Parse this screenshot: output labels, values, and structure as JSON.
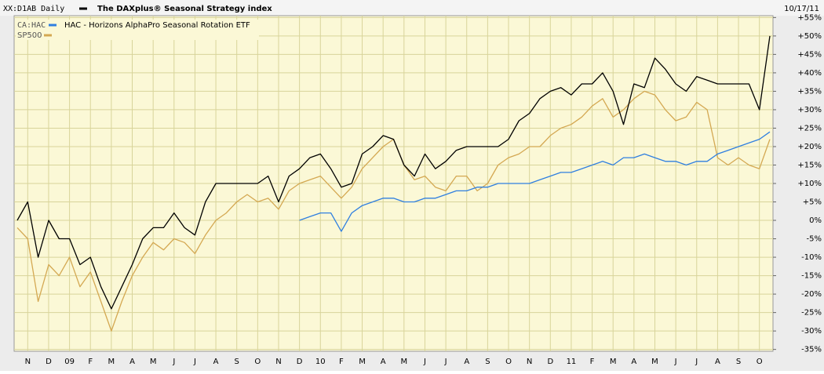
{
  "chart_data": {
    "type": "line",
    "symbol": "XX:D1AB Daily",
    "title": "The DAXplus® Seasonal Strategy index",
    "date": "10/17/11",
    "categories": [
      null,
      "N",
      null,
      "D",
      null,
      "09",
      null,
      "F",
      null,
      "M",
      null,
      "A",
      null,
      "M",
      null,
      "J",
      null,
      "J",
      null,
      "A",
      null,
      "S",
      null,
      "O",
      null,
      "N",
      null,
      "D",
      null,
      "10",
      null,
      "F",
      null,
      "M",
      null,
      "A",
      null,
      "M",
      null,
      "J",
      null,
      "J",
      null,
      "A",
      null,
      "S",
      null,
      "O",
      null,
      "N",
      null,
      "D",
      null,
      "11",
      null,
      "F",
      null,
      "M",
      null,
      "A",
      null,
      "M",
      null,
      "J",
      null,
      "J",
      null,
      "A",
      null,
      "S",
      null,
      "O",
      null
    ],
    "series": [
      {
        "name": "The DAXplus® Seasonal Strategy index",
        "legend_symbol": "XX:D1AB Daily",
        "color": "#000000",
        "values": [
          0,
          5,
          -10,
          0,
          -5,
          -5,
          -12,
          -10,
          -18,
          -24,
          -18,
          -12,
          -5,
          -2,
          -2,
          2,
          -2,
          -4,
          5,
          10,
          10,
          10,
          10,
          10,
          12,
          5,
          12,
          14,
          17,
          18,
          14,
          9,
          10,
          18,
          20,
          23,
          22,
          15,
          12,
          18,
          14,
          16,
          19,
          20,
          20,
          20,
          20,
          22,
          27,
          29,
          33,
          35,
          36,
          34,
          37,
          37,
          40,
          35,
          26,
          37,
          36,
          44,
          41,
          37,
          35,
          39,
          38,
          37,
          37,
          37,
          37,
          30,
          50
        ]
      },
      {
        "name": "HAC - Horizons AlphaPro Seasonal Rotation ETF",
        "legend_symbol": "CA:HAC",
        "color": "#2f7fe0",
        "values": [
          null,
          null,
          null,
          null,
          null,
          null,
          null,
          null,
          null,
          null,
          null,
          null,
          null,
          null,
          null,
          null,
          null,
          null,
          null,
          null,
          null,
          null,
          null,
          null,
          null,
          null,
          null,
          0,
          1,
          2,
          2,
          -3,
          2,
          4,
          5,
          6,
          6,
          5,
          5,
          6,
          6,
          7,
          8,
          8,
          9,
          9,
          10,
          10,
          10,
          10,
          11,
          12,
          13,
          13,
          14,
          15,
          16,
          15,
          17,
          17,
          18,
          17,
          16,
          16,
          15,
          16,
          16,
          18,
          19,
          20,
          21,
          22,
          24
        ]
      },
      {
        "name": "SP500",
        "color": "#d4a852",
        "values": [
          -2,
          -5,
          -22,
          -12,
          -15,
          -10,
          -18,
          -14,
          -22,
          -30,
          -22,
          -15,
          -10,
          -6,
          -8,
          -5,
          -6,
          -9,
          -4,
          0,
          2,
          5,
          7,
          5,
          6,
          3,
          8,
          10,
          11,
          12,
          9,
          6,
          9,
          14,
          17,
          20,
          22,
          15,
          11,
          12,
          9,
          8,
          12,
          12,
          8,
          10,
          15,
          17,
          18,
          20,
          20,
          23,
          25,
          26,
          28,
          31,
          33,
          28,
          30,
          33,
          35,
          34,
          30,
          27,
          28,
          32,
          30,
          17,
          15,
          17,
          15,
          14,
          22
        ]
      }
    ],
    "ylim": [
      -35.5,
      55.5
    ],
    "yticks": [
      {
        "value": -35,
        "label": "-35%"
      },
      {
        "value": -30,
        "label": "-30%"
      },
      {
        "value": -25,
        "label": "-25%"
      },
      {
        "value": -20,
        "label": "-20%"
      },
      {
        "value": -15,
        "label": "-15%"
      },
      {
        "value": -10,
        "label": "-10%"
      },
      {
        "value": -5,
        "label": "-5%"
      },
      {
        "value": 0,
        "label": "0%"
      },
      {
        "value": 5,
        "label": "+5%"
      },
      {
        "value": 10,
        "label": "+10%"
      },
      {
        "value": 15,
        "label": "+15%"
      },
      {
        "value": 20,
        "label": "+20%"
      },
      {
        "value": 25,
        "label": "+25%"
      },
      {
        "value": 30,
        "label": "+30%"
      },
      {
        "value": 35,
        "label": "+35%"
      },
      {
        "value": 40,
        "label": "+40%"
      },
      {
        "value": 45,
        "label": "+45%"
      },
      {
        "value": 50,
        "label": "+50%"
      },
      {
        "value": 55,
        "label": "+55%"
      }
    ],
    "grid": true
  }
}
